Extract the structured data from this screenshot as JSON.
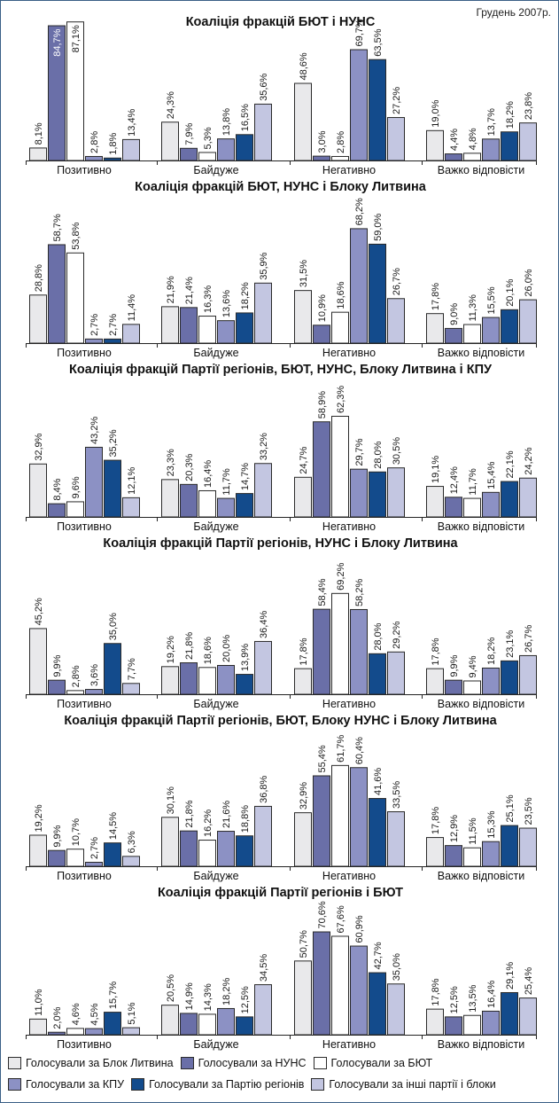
{
  "date_label": "Грудень 2007р.",
  "colors": {
    "Голосували за Блок Литвина": "#e9e9eb",
    "Голосували за НУНС": "#6a6fa8",
    "Голосували за БЮТ": "#ffffff",
    "Голосували за КПУ": "#8c91c4",
    "Голосували за Партію регіонів": "#134b8c",
    "Голосували за інші партії і блоки": "#c3c6e1"
  },
  "legend": [
    "Голосували за Блок Литвина",
    "Голосували за НУНС",
    "Голосували за БЮТ",
    "Голосували за КПУ",
    "Голосували за Партію регіонів",
    "Голосували за інші партії і блоки"
  ],
  "chart_data": [
    {
      "type": "bar",
      "title": "Коаліція фракцій БЮТ і НУНС",
      "categories": [
        "Позитивно",
        "Байдуже",
        "Негативно",
        "Важко відповісти"
      ],
      "series": [
        {
          "name": "Голосували за Блок Литвина",
          "values": [
            8.1,
            24.3,
            48.6,
            19.0
          ]
        },
        {
          "name": "Голосували за НУНС",
          "values": [
            84.7,
            7.9,
            3.0,
            4.4
          ]
        },
        {
          "name": "Голосували за БЮТ",
          "values": [
            87.1,
            5.3,
            2.8,
            4.8
          ]
        },
        {
          "name": "Голосували за КПУ",
          "values": [
            2.8,
            13.8,
            69.7,
            13.7
          ]
        },
        {
          "name": "Голосували за Партію регіонів",
          "values": [
            1.8,
            16.5,
            63.5,
            18.2
          ]
        },
        {
          "name": "Голосували за інші партії і блоки",
          "values": [
            13.4,
            35.6,
            27.2,
            23.8
          ]
        }
      ],
      "labels": [
        [
          "8,1%",
          "24,3%",
          "48,6%",
          "19,0%"
        ],
        [
          "84,7%",
          "7,9%",
          "3,0%",
          "4,4%"
        ],
        [
          "87,1%",
          "5,3%",
          "2,8%",
          "4,8%"
        ],
        [
          "2,8%",
          "13,8%",
          "69,7%",
          "13,7%"
        ],
        [
          "1,8%",
          "16,5%",
          "63,5%",
          "18,2%"
        ],
        [
          "13,4%",
          "35,6%",
          "27,2%",
          "23,8%"
        ]
      ]
    },
    {
      "type": "bar",
      "title": "Коаліція фракцій БЮТ, НУНС і Блоку Литвина",
      "categories": [
        "Позитивно",
        "Байдуже",
        "Негативно",
        "Важко відповісти"
      ],
      "series": [
        {
          "name": "Голосували за Блок Литвина",
          "values": [
            28.8,
            21.9,
            31.5,
            17.8
          ]
        },
        {
          "name": "Голосували за НУНС",
          "values": [
            58.7,
            21.4,
            10.9,
            9.0
          ]
        },
        {
          "name": "Голосували за БЮТ",
          "values": [
            53.8,
            16.3,
            18.6,
            11.3
          ]
        },
        {
          "name": "Голосували за КПУ",
          "values": [
            2.7,
            13.6,
            68.2,
            15.5
          ]
        },
        {
          "name": "Голосували за Партію регіонів",
          "values": [
            2.7,
            18.2,
            59.0,
            20.1
          ]
        },
        {
          "name": "Голосували за інші партії і блоки",
          "values": [
            11.4,
            35.9,
            26.7,
            26.0
          ]
        }
      ],
      "labels": [
        [
          "28,8%",
          "21,9%",
          "31,5%",
          "17,8%"
        ],
        [
          "58,7%",
          "21,4%",
          "10,9%",
          "9,0%"
        ],
        [
          "53,8%",
          "16,3%",
          "18,6%",
          "11,3%"
        ],
        [
          "2,7%",
          "13,6%",
          "68,2%",
          "15,5%"
        ],
        [
          "2,7%",
          "18,2%",
          "59,0%",
          "20,1%"
        ],
        [
          "11,4%",
          "35,9%",
          "26,7%",
          "26,0%"
        ]
      ]
    },
    {
      "type": "bar",
      "title": "Коаліція фракцій Партії регіонів, БЮТ, НУНС, Блоку Литвина і КПУ",
      "categories": [
        "Позитивно",
        "Байдуже",
        "Негативно",
        "Важко відповісти"
      ],
      "series": [
        {
          "name": "Голосували за Блок Литвина",
          "values": [
            32.9,
            23.3,
            24.7,
            19.1
          ]
        },
        {
          "name": "Голосували за НУНС",
          "values": [
            8.4,
            20.3,
            58.9,
            12.4
          ]
        },
        {
          "name": "Голосували за БЮТ",
          "values": [
            9.6,
            16.4,
            62.3,
            11.7
          ]
        },
        {
          "name": "Голосували за КПУ",
          "values": [
            43.2,
            11.7,
            29.7,
            15.4
          ]
        },
        {
          "name": "Голосували за Партію регіонів",
          "values": [
            35.2,
            14.7,
            28.0,
            22.1
          ]
        },
        {
          "name": "Голосували за інші партії і блоки",
          "values": [
            12.1,
            33.2,
            30.5,
            24.2
          ]
        }
      ],
      "labels": [
        [
          "32,9%",
          "23,3%",
          "24,7%",
          "19,1%"
        ],
        [
          "8,4%",
          "20,3%",
          "58,9%",
          "12,4%"
        ],
        [
          "9,6%",
          "16,4%",
          "62,3%",
          "11,7%"
        ],
        [
          "43,2%",
          "11,7%",
          "29,7%",
          "15,4%"
        ],
        [
          "35,2%",
          "14,7%",
          "28,0%",
          "22,1%"
        ],
        [
          "12,1%",
          "33,2%",
          "30,5%",
          "24,2%"
        ]
      ]
    },
    {
      "type": "bar",
      "title": "Коаліція фракцій Партії регіонів, НУНС і Блоку Литвина",
      "categories": [
        "Позитивно",
        "Байдуже",
        "Негативно",
        "Важко відповісти"
      ],
      "series": [
        {
          "name": "Голосували за Блок Литвина",
          "values": [
            45.2,
            19.2,
            17.8,
            17.8
          ]
        },
        {
          "name": "Голосували за НУНС",
          "values": [
            9.9,
            21.8,
            58.4,
            9.9
          ]
        },
        {
          "name": "Голосували за БЮТ",
          "values": [
            2.8,
            18.6,
            69.2,
            9.4
          ]
        },
        {
          "name": "Голосували за КПУ",
          "values": [
            3.6,
            20.0,
            58.2,
            18.2
          ]
        },
        {
          "name": "Голосували за Партію регіонів",
          "values": [
            35.0,
            13.9,
            28.0,
            23.1
          ]
        },
        {
          "name": "Голосували за інші партії і блоки",
          "values": [
            7.7,
            36.4,
            29.2,
            26.7
          ]
        }
      ],
      "labels": [
        [
          "45,2%",
          "19,2%",
          "17,8%",
          "17,8%"
        ],
        [
          "9,9%",
          "21,8%",
          "58,4%",
          "9,9%"
        ],
        [
          "2,8%",
          "18,6%",
          "69,2%",
          "9,4%"
        ],
        [
          "3,6%",
          "20,0%",
          "58,2%",
          "18,2%"
        ],
        [
          "35,0%",
          "13,9%",
          "28,0%",
          "23,1%"
        ],
        [
          "7,7%",
          "36,4%",
          "29,2%",
          "26,7%"
        ]
      ]
    },
    {
      "type": "bar",
      "title": "Коаліція фракцій Партії регіонів, БЮТ, Блоку НУНС і Блоку Литвина",
      "categories": [
        "Позитивно",
        "Байдуже",
        "Негативно",
        "Важко відповісти"
      ],
      "series": [
        {
          "name": "Голосували за Блок Литвина",
          "values": [
            19.2,
            30.1,
            32.9,
            17.8
          ]
        },
        {
          "name": "Голосували за НУНС",
          "values": [
            9.9,
            21.8,
            55.4,
            12.9
          ]
        },
        {
          "name": "Голосували за БЮТ",
          "values": [
            10.7,
            16.2,
            61.7,
            11.5
          ]
        },
        {
          "name": "Голосували за КПУ",
          "values": [
            2.7,
            21.6,
            60.4,
            15.3
          ]
        },
        {
          "name": "Голосували за Партію регіонів",
          "values": [
            14.5,
            18.8,
            41.6,
            25.1
          ]
        },
        {
          "name": "Голосували за інші партії і блоки",
          "values": [
            6.3,
            36.8,
            33.5,
            23.5
          ]
        }
      ],
      "labels": [
        [
          "19,2%",
          "30,1%",
          "32,9%",
          "17,8%"
        ],
        [
          "9,9%",
          "21,8%",
          "55,4%",
          "12,9%"
        ],
        [
          "10,7%",
          "16,2%",
          "61,7%",
          "11,5%"
        ],
        [
          "2,7%",
          "21,6%",
          "60,4%",
          "15,3%"
        ],
        [
          "14,5%",
          "18,8%",
          "41,6%",
          "25,1%"
        ],
        [
          "6,3%",
          "36,8%",
          "33,5%",
          "23,5%"
        ]
      ]
    },
    {
      "type": "bar",
      "title": "Коаліція фракцій Партії регіонів і БЮТ",
      "categories": [
        "Позитивно",
        "Байдуже",
        "Негативно",
        "Важко відповісти"
      ],
      "series": [
        {
          "name": "Голосували за Блок Литвина",
          "values": [
            11.0,
            20.5,
            50.7,
            17.8
          ]
        },
        {
          "name": "Голосували за НУНС",
          "values": [
            2.0,
            14.9,
            70.6,
            12.5
          ]
        },
        {
          "name": "Голосували за БЮТ",
          "values": [
            4.6,
            14.3,
            67.6,
            13.5
          ]
        },
        {
          "name": "Голосували за КПУ",
          "values": [
            4.5,
            18.2,
            60.9,
            16.4
          ]
        },
        {
          "name": "Голосували за Партію регіонів",
          "values": [
            15.7,
            12.5,
            42.7,
            29.1
          ]
        },
        {
          "name": "Голосували за інші партії і блоки",
          "values": [
            5.1,
            34.5,
            35.0,
            25.4
          ]
        }
      ],
      "labels": [
        [
          "11,0%",
          "20,5%",
          "50,7%",
          "17,8%"
        ],
        [
          "2,0%",
          "14,9%",
          "70,6%",
          "12,5%"
        ],
        [
          "4,6%",
          "14,3%",
          "67,6%",
          "13,5%"
        ],
        [
          "4,5%",
          "18,2%",
          "60,9%",
          "16,4%"
        ],
        [
          "15,7%",
          "12,5%",
          "42,7%",
          "29,1%"
        ],
        [
          "5,1%",
          "34,5%",
          "35,0%",
          "25,4%"
        ]
      ]
    }
  ]
}
